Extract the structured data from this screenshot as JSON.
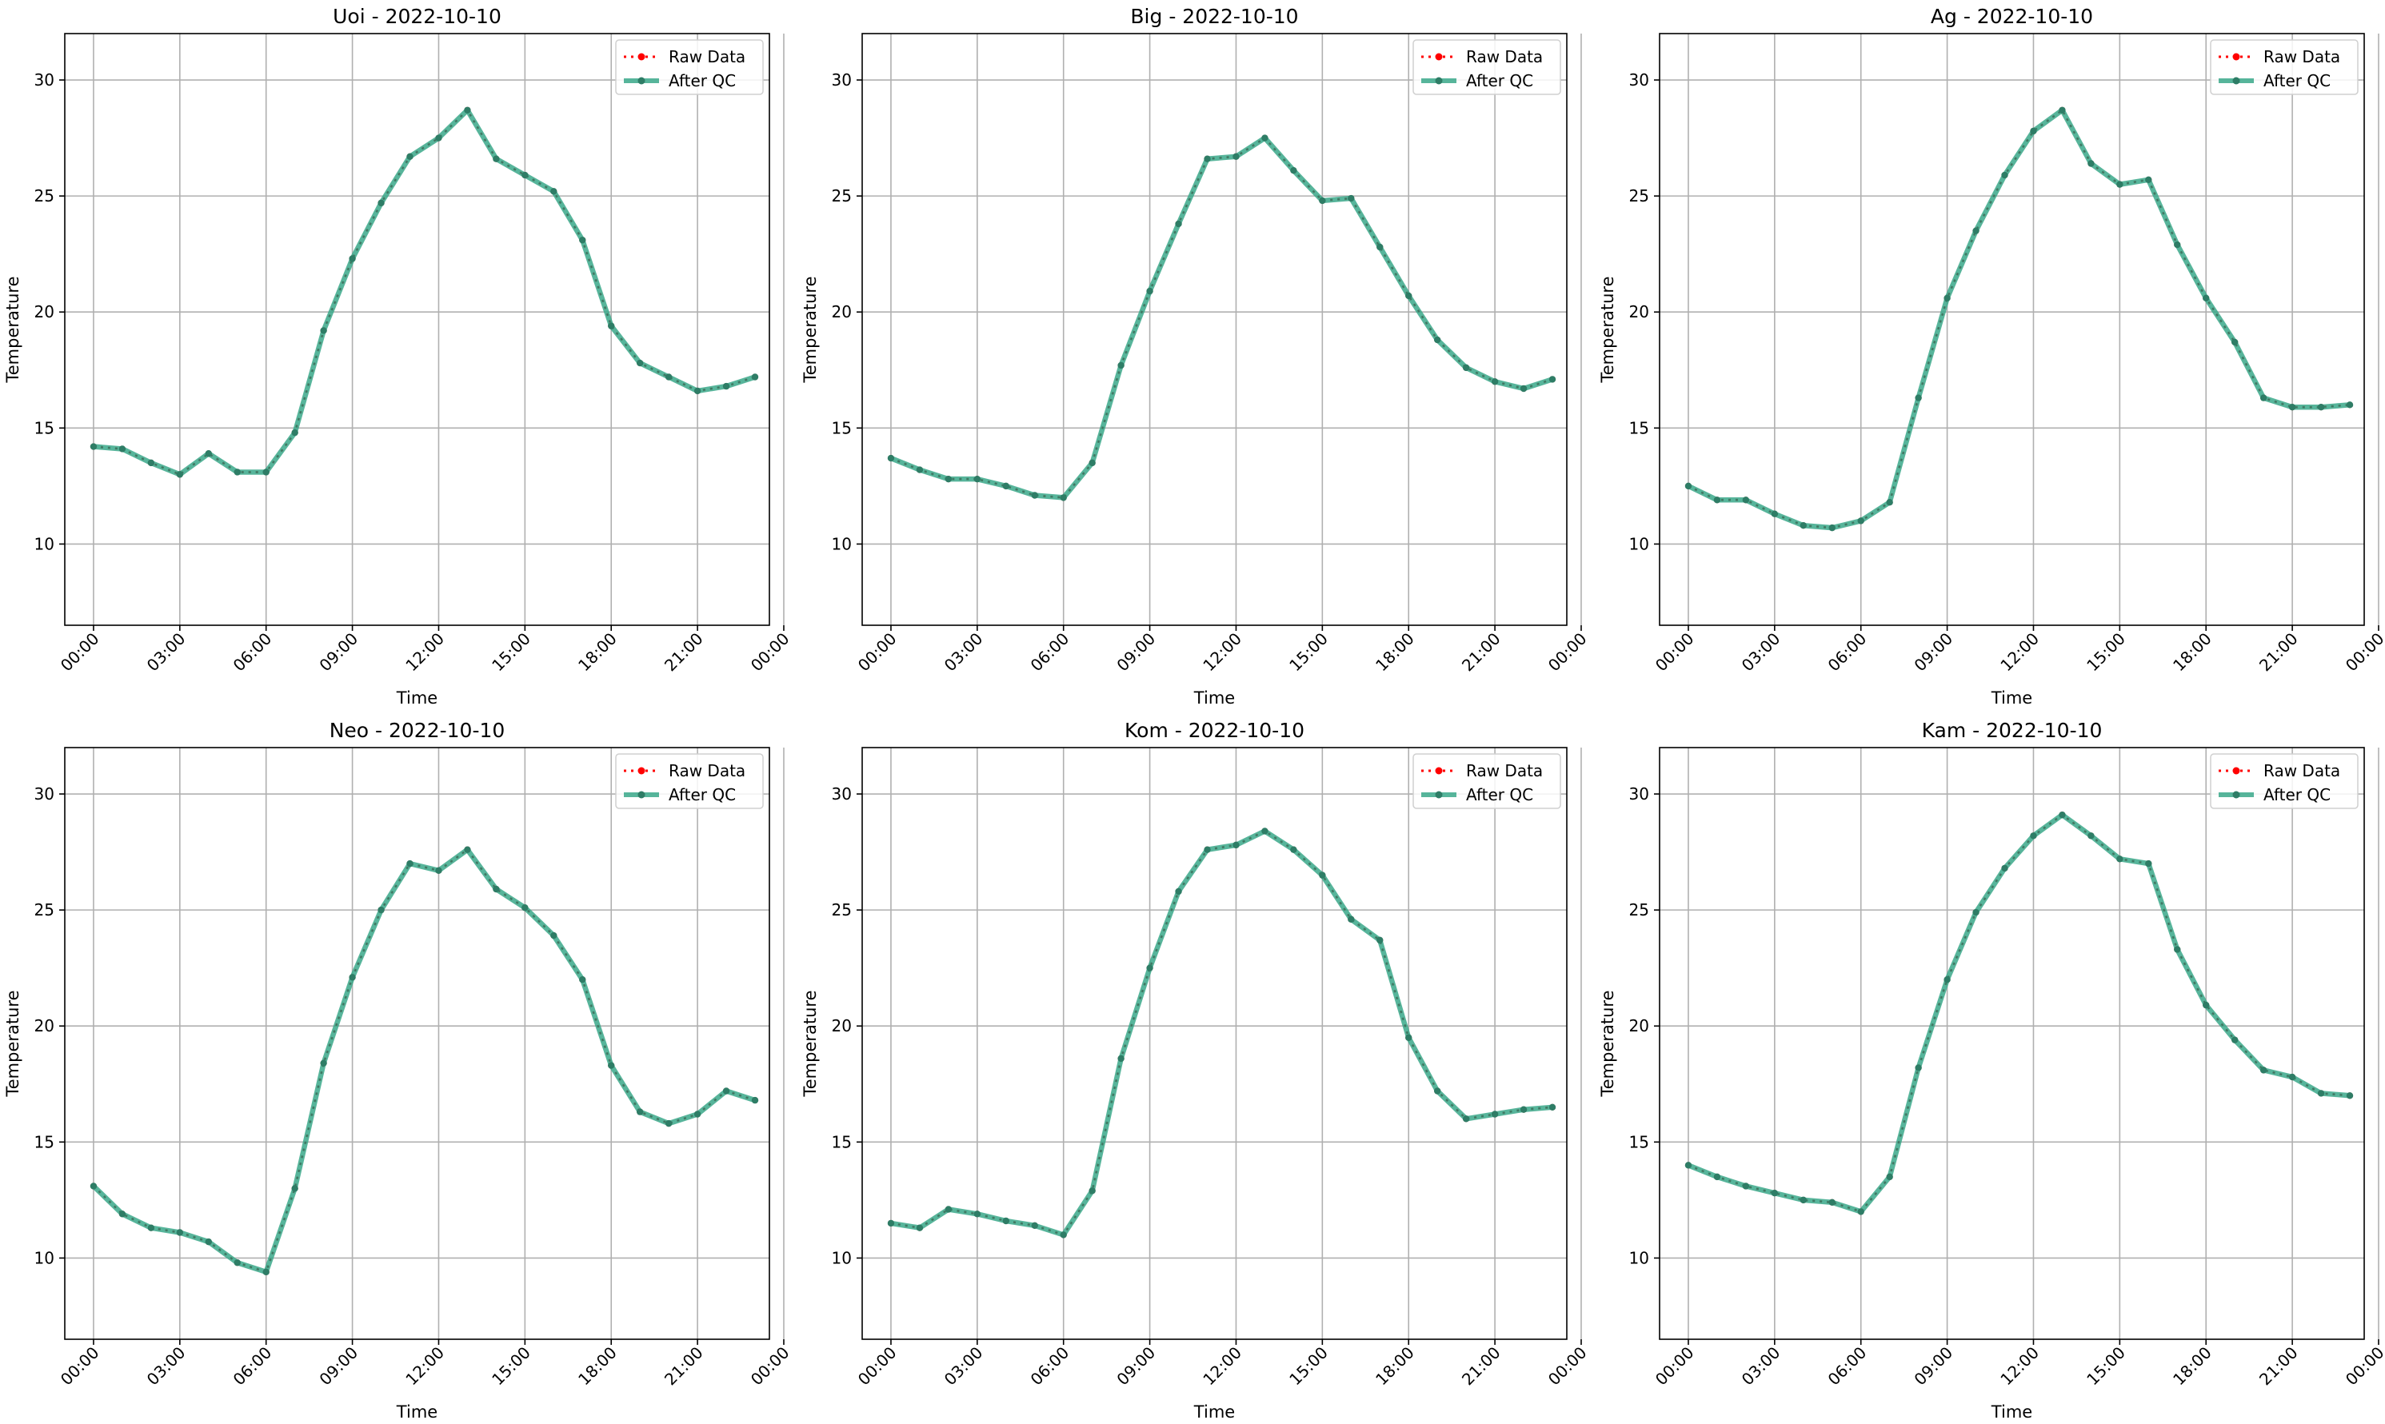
{
  "figure": {
    "legend_raw": "Raw Data",
    "legend_qc": "After QC",
    "color_raw": "#ff0000",
    "color_qc": "#3aa88a",
    "color_qc_marker": "#2e7d66"
  },
  "chart_data": [
    {
      "type": "line",
      "title": "Uoi - 2022-10-10",
      "xlabel": "Time",
      "ylabel": "Temperature",
      "ylim": [
        6.5,
        32
      ],
      "yticks": [
        10,
        15,
        20,
        25,
        30
      ],
      "xticks": [
        "00:00",
        "03:00",
        "06:00",
        "09:00",
        "12:00",
        "15:00",
        "18:00",
        "21:00",
        "00:00"
      ],
      "grid": true,
      "legend": "top-right",
      "x": [
        "00:00",
        "01:00",
        "02:00",
        "03:00",
        "04:00",
        "05:00",
        "06:00",
        "07:00",
        "08:00",
        "09:00",
        "10:00",
        "11:00",
        "12:00",
        "13:00",
        "14:00",
        "15:00",
        "16:00",
        "17:00",
        "18:00",
        "19:00",
        "20:00",
        "21:00",
        "22:00",
        "23:00"
      ],
      "series": [
        {
          "name": "Raw Data",
          "values": [
            14.2,
            14.1,
            13.5,
            13.0,
            13.9,
            13.1,
            13.1,
            14.8,
            19.2,
            22.3,
            24.7,
            26.7,
            27.5,
            28.7,
            26.6,
            25.9,
            25.2,
            23.1,
            19.4,
            17.8,
            17.2,
            16.6,
            16.8,
            17.2
          ]
        },
        {
          "name": "After QC",
          "values": [
            14.2,
            14.1,
            13.5,
            13.0,
            13.9,
            13.1,
            13.1,
            14.8,
            19.2,
            22.3,
            24.7,
            26.7,
            27.5,
            28.7,
            26.6,
            25.9,
            25.2,
            23.1,
            19.4,
            17.8,
            17.2,
            16.6,
            16.8,
            17.2
          ]
        }
      ]
    },
    {
      "type": "line",
      "title": "Big - 2022-10-10",
      "xlabel": "Time",
      "ylabel": "Temperature",
      "ylim": [
        6.5,
        32
      ],
      "yticks": [
        10,
        15,
        20,
        25,
        30
      ],
      "xticks": [
        "00:00",
        "03:00",
        "06:00",
        "09:00",
        "12:00",
        "15:00",
        "18:00",
        "21:00",
        "00:00"
      ],
      "grid": true,
      "legend": "top-right",
      "x": [
        "00:00",
        "01:00",
        "02:00",
        "03:00",
        "04:00",
        "05:00",
        "06:00",
        "07:00",
        "08:00",
        "09:00",
        "10:00",
        "11:00",
        "12:00",
        "13:00",
        "14:00",
        "15:00",
        "16:00",
        "17:00",
        "18:00",
        "19:00",
        "20:00",
        "21:00",
        "22:00",
        "23:00"
      ],
      "series": [
        {
          "name": "Raw Data",
          "values": [
            13.7,
            13.2,
            12.8,
            12.8,
            12.5,
            12.1,
            12.0,
            13.5,
            17.7,
            20.9,
            23.8,
            26.6,
            26.7,
            27.5,
            26.1,
            24.8,
            24.9,
            22.8,
            20.7,
            18.8,
            17.6,
            17.0,
            16.7,
            17.1
          ]
        },
        {
          "name": "After QC",
          "values": [
            13.7,
            13.2,
            12.8,
            12.8,
            12.5,
            12.1,
            12.0,
            13.5,
            17.7,
            20.9,
            23.8,
            26.6,
            26.7,
            27.5,
            26.1,
            24.8,
            24.9,
            22.8,
            20.7,
            18.8,
            17.6,
            17.0,
            16.7,
            17.1
          ]
        }
      ]
    },
    {
      "type": "line",
      "title": "Ag - 2022-10-10",
      "xlabel": "Time",
      "ylabel": "Temperature",
      "ylim": [
        6.5,
        32
      ],
      "yticks": [
        10,
        15,
        20,
        25,
        30
      ],
      "xticks": [
        "00:00",
        "03:00",
        "06:00",
        "09:00",
        "12:00",
        "15:00",
        "18:00",
        "21:00",
        "00:00"
      ],
      "grid": true,
      "legend": "top-right",
      "x": [
        "00:00",
        "01:00",
        "02:00",
        "03:00",
        "04:00",
        "05:00",
        "06:00",
        "07:00",
        "08:00",
        "09:00",
        "10:00",
        "11:00",
        "12:00",
        "13:00",
        "14:00",
        "15:00",
        "16:00",
        "17:00",
        "18:00",
        "19:00",
        "20:00",
        "21:00",
        "22:00",
        "23:00"
      ],
      "series": [
        {
          "name": "Raw Data",
          "values": [
            12.5,
            11.9,
            11.9,
            11.3,
            10.8,
            10.7,
            11.0,
            11.8,
            16.3,
            20.6,
            23.5,
            25.9,
            27.8,
            28.7,
            26.4,
            25.5,
            25.7,
            22.9,
            20.6,
            18.7,
            16.3,
            15.9,
            15.9,
            16.0
          ]
        },
        {
          "name": "After QC",
          "values": [
            12.5,
            11.9,
            11.9,
            11.3,
            10.8,
            10.7,
            11.0,
            11.8,
            16.3,
            20.6,
            23.5,
            25.9,
            27.8,
            28.7,
            26.4,
            25.5,
            25.7,
            22.9,
            20.6,
            18.7,
            16.3,
            15.9,
            15.9,
            16.0
          ]
        }
      ]
    },
    {
      "type": "line",
      "title": "Neo - 2022-10-10",
      "xlabel": "Time",
      "ylabel": "Temperature",
      "ylim": [
        6.5,
        32
      ],
      "yticks": [
        10,
        15,
        20,
        25,
        30
      ],
      "xticks": [
        "00:00",
        "03:00",
        "06:00",
        "09:00",
        "12:00",
        "15:00",
        "18:00",
        "21:00",
        "00:00"
      ],
      "grid": true,
      "legend": "top-right",
      "x": [
        "00:00",
        "01:00",
        "02:00",
        "03:00",
        "04:00",
        "05:00",
        "06:00",
        "07:00",
        "08:00",
        "09:00",
        "10:00",
        "11:00",
        "12:00",
        "13:00",
        "14:00",
        "15:00",
        "16:00",
        "17:00",
        "18:00",
        "19:00",
        "20:00",
        "21:00",
        "22:00",
        "23:00"
      ],
      "series": [
        {
          "name": "Raw Data",
          "values": [
            13.1,
            11.9,
            11.3,
            11.1,
            10.7,
            9.8,
            9.4,
            13.0,
            18.4,
            22.1,
            25.0,
            27.0,
            26.7,
            27.6,
            25.9,
            25.1,
            23.9,
            22.0,
            18.3,
            16.3,
            15.8,
            16.2,
            17.2,
            16.8
          ]
        },
        {
          "name": "After QC",
          "values": [
            13.1,
            11.9,
            11.3,
            11.1,
            10.7,
            9.8,
            9.4,
            13.0,
            18.4,
            22.1,
            25.0,
            27.0,
            26.7,
            27.6,
            25.9,
            25.1,
            23.9,
            22.0,
            18.3,
            16.3,
            15.8,
            16.2,
            17.2,
            16.8
          ]
        }
      ]
    },
    {
      "type": "line",
      "title": "Kom - 2022-10-10",
      "xlabel": "Time",
      "ylabel": "Temperature",
      "ylim": [
        6.5,
        32
      ],
      "yticks": [
        10,
        15,
        20,
        25,
        30
      ],
      "xticks": [
        "00:00",
        "03:00",
        "06:00",
        "09:00",
        "12:00",
        "15:00",
        "18:00",
        "21:00",
        "00:00"
      ],
      "grid": true,
      "legend": "top-right",
      "x": [
        "00:00",
        "01:00",
        "02:00",
        "03:00",
        "04:00",
        "05:00",
        "06:00",
        "07:00",
        "08:00",
        "09:00",
        "10:00",
        "11:00",
        "12:00",
        "13:00",
        "14:00",
        "15:00",
        "16:00",
        "17:00",
        "18:00",
        "19:00",
        "20:00",
        "21:00",
        "22:00",
        "23:00"
      ],
      "series": [
        {
          "name": "Raw Data",
          "values": [
            11.5,
            11.3,
            12.1,
            11.9,
            11.6,
            11.4,
            11.0,
            12.9,
            18.6,
            22.5,
            25.8,
            27.6,
            27.8,
            28.4,
            27.6,
            26.5,
            24.6,
            23.7,
            19.5,
            17.2,
            16.0,
            16.2,
            16.4,
            16.5
          ]
        },
        {
          "name": "After QC",
          "values": [
            11.5,
            11.3,
            12.1,
            11.9,
            11.6,
            11.4,
            11.0,
            12.9,
            18.6,
            22.5,
            25.8,
            27.6,
            27.8,
            28.4,
            27.6,
            26.5,
            24.6,
            23.7,
            19.5,
            17.2,
            16.0,
            16.2,
            16.4,
            16.5
          ]
        }
      ]
    },
    {
      "type": "line",
      "title": "Kam - 2022-10-10",
      "xlabel": "Time",
      "ylabel": "Temperature",
      "ylim": [
        6.5,
        32
      ],
      "yticks": [
        10,
        15,
        20,
        25,
        30
      ],
      "xticks": [
        "00:00",
        "03:00",
        "06:00",
        "09:00",
        "12:00",
        "15:00",
        "18:00",
        "21:00",
        "00:00"
      ],
      "grid": true,
      "legend": "top-right",
      "x": [
        "00:00",
        "01:00",
        "02:00",
        "03:00",
        "04:00",
        "05:00",
        "06:00",
        "07:00",
        "08:00",
        "09:00",
        "10:00",
        "11:00",
        "12:00",
        "13:00",
        "14:00",
        "15:00",
        "16:00",
        "17:00",
        "18:00",
        "19:00",
        "20:00",
        "21:00",
        "22:00",
        "23:00"
      ],
      "series": [
        {
          "name": "Raw Data",
          "values": [
            14.0,
            13.5,
            13.1,
            12.8,
            12.5,
            12.4,
            12.0,
            13.5,
            18.2,
            22.0,
            24.9,
            26.8,
            28.2,
            29.1,
            28.2,
            27.2,
            27.0,
            23.3,
            20.9,
            19.4,
            18.1,
            17.8,
            17.1,
            17.0
          ]
        },
        {
          "name": "After QC",
          "values": [
            14.0,
            13.5,
            13.1,
            12.8,
            12.5,
            12.4,
            12.0,
            13.5,
            18.2,
            22.0,
            24.9,
            26.8,
            28.2,
            29.1,
            28.2,
            27.2,
            27.0,
            23.3,
            20.9,
            19.4,
            18.1,
            17.8,
            17.1,
            17.0
          ]
        }
      ]
    }
  ]
}
